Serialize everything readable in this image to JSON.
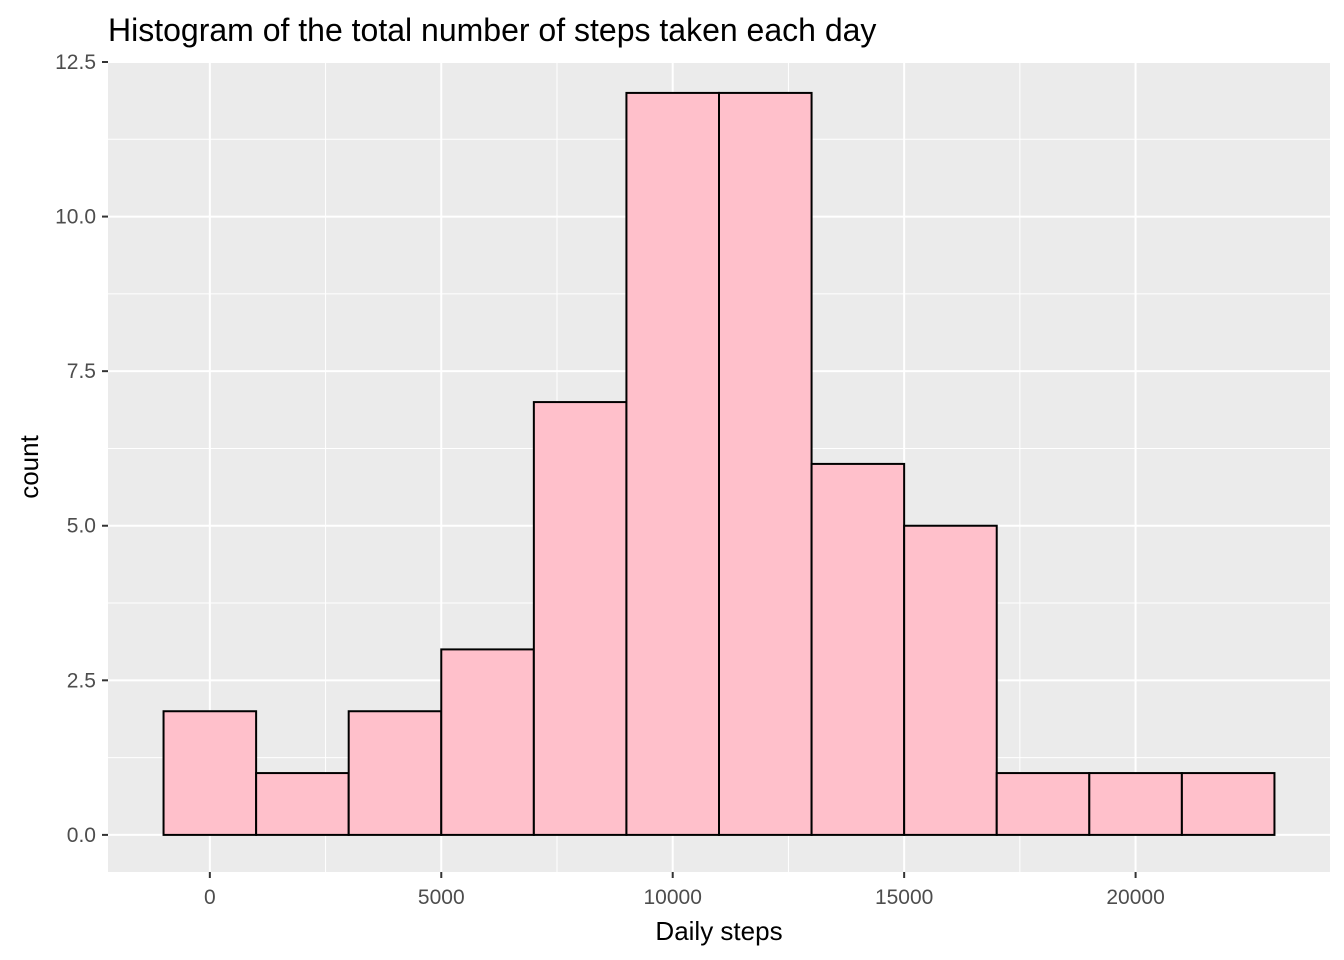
{
  "chart_data": {
    "type": "bar",
    "title": "Histogram of the total number of steps taken each day",
    "xlabel": "Daily steps",
    "ylabel": "count",
    "bin_width": 2000,
    "bins": [
      {
        "x_start": -1000,
        "x_end": 1000,
        "count": 2
      },
      {
        "x_start": 1000,
        "x_end": 3000,
        "count": 1
      },
      {
        "x_start": 3000,
        "x_end": 5000,
        "count": 2
      },
      {
        "x_start": 5000,
        "x_end": 7000,
        "count": 3
      },
      {
        "x_start": 7000,
        "x_end": 9000,
        "count": 7
      },
      {
        "x_start": 9000,
        "x_end": 11000,
        "count": 12
      },
      {
        "x_start": 11000,
        "x_end": 13000,
        "count": 12
      },
      {
        "x_start": 13000,
        "x_end": 15000,
        "count": 6
      },
      {
        "x_start": 15000,
        "x_end": 17000,
        "count": 5
      },
      {
        "x_start": 17000,
        "x_end": 19000,
        "count": 1
      },
      {
        "x_start": 19000,
        "x_end": 21000,
        "count": 1
      },
      {
        "x_start": 21000,
        "x_end": 23000,
        "count": 1
      }
    ],
    "xlim": [
      -2200,
      24200
    ],
    "ylim": [
      -0.6,
      12.5
    ],
    "x_ticks": [
      0,
      5000,
      10000,
      15000,
      20000
    ],
    "x_tick_labels": [
      "0",
      "5000",
      "10000",
      "15000",
      "20000"
    ],
    "y_ticks": [
      0,
      2.5,
      5,
      7.5,
      10,
      12.5
    ],
    "y_tick_labels": [
      "0.0",
      "2.5",
      "5.0",
      "7.5",
      "10.0",
      "12.5"
    ],
    "grid": true,
    "legend": "none",
    "colors": {
      "bar_fill": "#FFC0CB",
      "bar_outline": "#000000",
      "panel_background": "#EBEBEB",
      "grid_major": "#FFFFFF",
      "tick_text": "#4D4D4D"
    }
  }
}
